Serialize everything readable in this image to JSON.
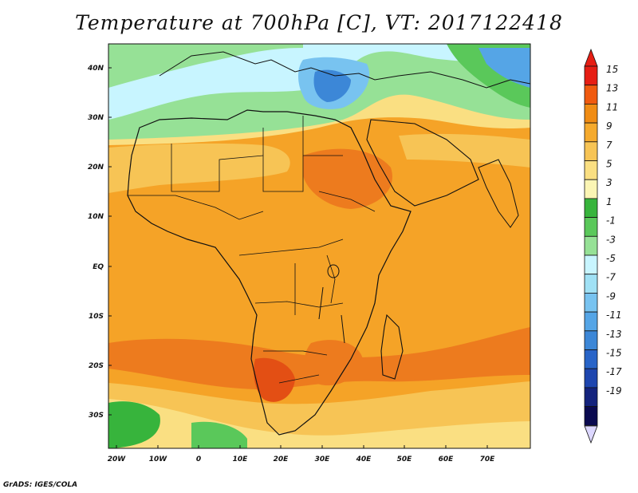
{
  "title": "Temperature at 700hPa [C], VT: 2017122418",
  "footer": "GrADS: IGES/COLA",
  "map": {
    "lon_range": [
      -23,
      80
    ],
    "lat_range": [
      -36,
      45
    ],
    "x_ticks": [
      "20W",
      "10W",
      "0",
      "10E",
      "20E",
      "30E",
      "40E",
      "50E",
      "60E",
      "70E"
    ],
    "y_ticks": [
      "40N",
      "30N",
      "20N",
      "10N",
      "EQ",
      "10S",
      "20S",
      "30S"
    ],
    "regions": {
      "mediterranean_cold": "blue",
      "sahara_band": "light-green",
      "tropics": "orange",
      "southern_africa_warm": "red-orange",
      "south_atlantic_cool": "green"
    }
  },
  "colorbar": {
    "labels": [
      "15",
      "13",
      "11",
      "9",
      "7",
      "5",
      "3",
      "1",
      "-1",
      "-3",
      "-5",
      "-7",
      "-9",
      "-11",
      "-13",
      "-15",
      "-17",
      "-19"
    ],
    "colors": [
      "#e61e14",
      "#f05a0f",
      "#f08c14",
      "#f5aa2d",
      "#f7c455",
      "#fadf82",
      "#fbf5b4",
      "#37b43c",
      "#5ac85a",
      "#96e196",
      "#c8f5ff",
      "#a0e1f5",
      "#78c3f0",
      "#55a5e6",
      "#3c87d7",
      "#2864c8",
      "#1e46af",
      "#14237d",
      "#0a0a50"
    ],
    "top_arrow_color": "#e61e14",
    "bottom_arrow_color": "#dcd7ff"
  }
}
